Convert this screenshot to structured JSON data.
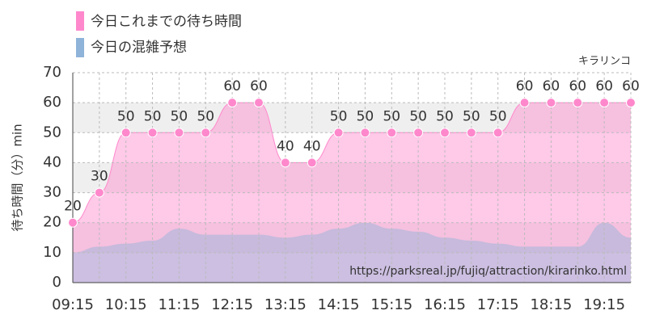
{
  "chart_data": {
    "type": "area",
    "y_label": "待ち時間（分）min",
    "annotations": [
      "キラリンコ",
      "https://parksreal.jp/fujiq/attraction/kirarinko.html"
    ],
    "categories": [
      "09:15",
      null,
      "10:15",
      null,
      "11:15",
      null,
      "12:15",
      null,
      "13:15",
      null,
      "14:15",
      null,
      "15:15",
      null,
      "16:15",
      null,
      "17:15",
      null,
      "18:15",
      null,
      "19:15",
      null
    ],
    "series": [
      {
        "name": "今日これまでの待ち時間",
        "color": "#ff88cc",
        "values": [
          20,
          30,
          50,
          50,
          50,
          50,
          60,
          60,
          40,
          40,
          50,
          50,
          50,
          50,
          50,
          50,
          50,
          60,
          60,
          60,
          60,
          60
        ],
        "labels": true
      },
      {
        "name": "今日の混雑予想",
        "color": "#8fb3d9",
        "values": [
          10,
          12,
          13,
          14,
          18,
          16,
          16,
          16,
          15,
          16,
          18,
          20,
          18,
          17,
          15,
          14,
          13,
          12,
          12,
          12,
          20,
          15
        ],
        "labels": false
      }
    ],
    "ylim": [
      0,
      70
    ],
    "yticks": [
      0,
      10,
      20,
      30,
      40,
      50,
      60,
      70
    ],
    "grid": true
  }
}
